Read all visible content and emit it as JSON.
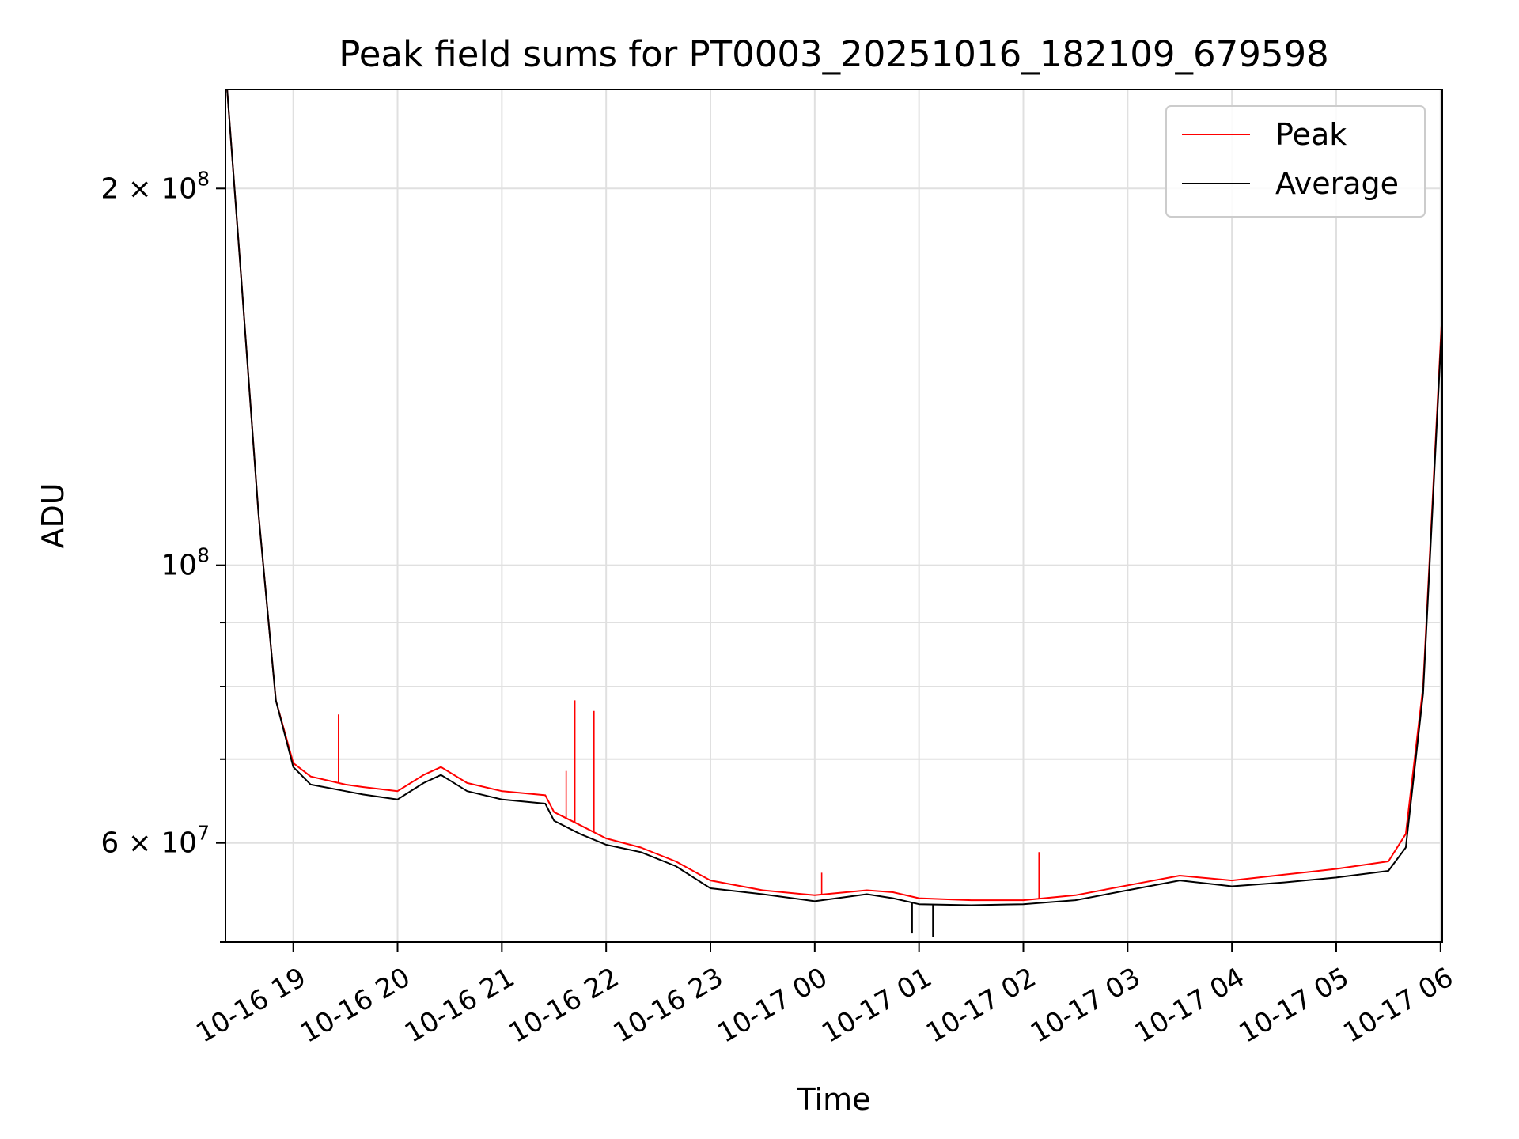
{
  "chart_data": {
    "type": "line",
    "title": "Peak field sums for PT0003_20251016_182109_679598",
    "xlabel": "Time",
    "ylabel": "ADU",
    "yscale": "log",
    "ylim": [
      50000000,
      240000000
    ],
    "xlim": [
      "10-16 18:21",
      "10-17 06:01"
    ],
    "grid": true,
    "legend_position": "top-right",
    "x_ticks": [
      "10-16 19",
      "10-16 20",
      "10-16 21",
      "10-16 22",
      "10-16 23",
      "10-17 00",
      "10-17 01",
      "10-17 02",
      "10-17 03",
      "10-17 04",
      "10-17 05",
      "10-17 06"
    ],
    "y_ticks": [
      {
        "value": 200000000,
        "mant": "2",
        "exp": "8"
      },
      {
        "value": 100000000,
        "mant": "",
        "exp": "8"
      },
      {
        "value": 60000000,
        "mant": "6",
        "exp": "7"
      }
    ],
    "series": [
      {
        "name": "Peak",
        "color": "#ff0000",
        "x": [
          "10-16 18:21",
          "10-16 18:30",
          "10-16 18:40",
          "10-16 18:50",
          "10-16 19:00",
          "10-16 19:10",
          "10-16 19:30",
          "10-16 19:40",
          "10-16 20:00",
          "10-16 20:15",
          "10-16 20:25",
          "10-16 20:40",
          "10-16 21:00",
          "10-16 21:25",
          "10-16 21:30",
          "10-16 21:45",
          "10-16 22:00",
          "10-16 22:20",
          "10-16 22:40",
          "10-16 23:00",
          "10-16 23:30",
          "10-17 00:00",
          "10-17 00:30",
          "10-17 00:45",
          "10-17 01:00",
          "10-17 01:30",
          "10-17 02:00",
          "10-17 02:30",
          "10-17 03:00",
          "10-17 03:30",
          "10-17 04:00",
          "10-17 04:30",
          "10-17 05:00",
          "10-17 05:30",
          "10-17 05:40",
          "10-17 05:50",
          "10-17 06:01"
        ],
        "values": [
          250000000,
          170000000,
          110000000,
          78000000,
          69500000,
          67800000,
          66800000,
          66500000,
          66000000,
          68000000,
          69000000,
          67000000,
          66000000,
          65500000,
          63500000,
          62000000,
          60500000,
          59500000,
          58000000,
          56000000,
          55000000,
          54500000,
          55000000,
          54800000,
          54200000,
          54000000,
          54000000,
          54500000,
          55500000,
          56500000,
          56000000,
          56600000,
          57200000,
          58000000,
          61000000,
          80000000,
          160000000
        ]
      },
      {
        "name": "Average",
        "color": "#000000",
        "x": [
          "10-16 18:21",
          "10-16 18:30",
          "10-16 18:40",
          "10-16 18:50",
          "10-16 19:00",
          "10-16 19:10",
          "10-16 19:30",
          "10-16 19:40",
          "10-16 20:00",
          "10-16 20:15",
          "10-16 20:25",
          "10-16 20:40",
          "10-16 21:00",
          "10-16 21:25",
          "10-16 21:30",
          "10-16 21:45",
          "10-16 22:00",
          "10-16 22:20",
          "10-16 22:40",
          "10-16 23:00",
          "10-16 23:30",
          "10-17 00:00",
          "10-17 00:30",
          "10-17 00:45",
          "10-17 01:00",
          "10-17 01:30",
          "10-17 02:00",
          "10-17 02:30",
          "10-17 03:00",
          "10-17 03:30",
          "10-17 04:00",
          "10-17 04:30",
          "10-17 05:00",
          "10-17 05:30",
          "10-17 05:40",
          "10-17 05:50",
          "10-17 06:01"
        ],
        "values": [
          250000000,
          170000000,
          110000000,
          78000000,
          69000000,
          66800000,
          66000000,
          65600000,
          65000000,
          67000000,
          68000000,
          66000000,
          65000000,
          64500000,
          62500000,
          61000000,
          59800000,
          59000000,
          57500000,
          55200000,
          54600000,
          53900000,
          54600000,
          54200000,
          53600000,
          53500000,
          53600000,
          54000000,
          55000000,
          56000000,
          55400000,
          55800000,
          56300000,
          57000000,
          59500000,
          79000000,
          158000000
        ]
      }
    ],
    "peak_spikes": [
      {
        "x": "10-16 19:26",
        "y": 76000000
      },
      {
        "x": "10-16 21:42",
        "y": 78000000
      },
      {
        "x": "10-16 21:53",
        "y": 76500000
      },
      {
        "x": "10-16 21:37",
        "y": 68500000
      },
      {
        "x": "10-17 00:04",
        "y": 56800000
      },
      {
        "x": "10-17 02:09",
        "y": 59000000
      }
    ],
    "average_dips": [
      {
        "x": "10-17 00:56",
        "y": 50800000
      },
      {
        "x": "10-17 01:08",
        "y": 50500000
      }
    ]
  }
}
